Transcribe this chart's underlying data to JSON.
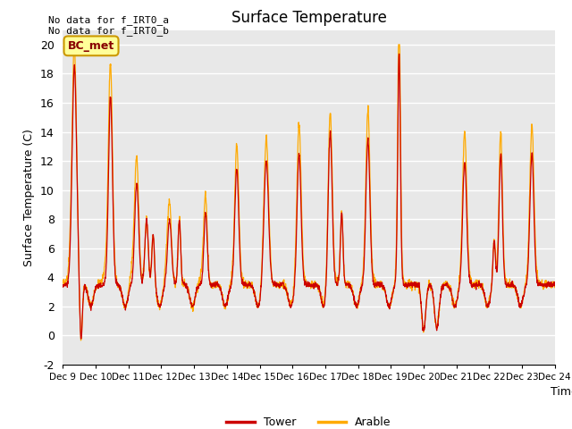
{
  "title": "Surface Temperature",
  "ylabel": "Surface Temperature (C)",
  "xlabel": "Time",
  "no_data_texts": [
    "No data for f_IRT0_a",
    "No data for f_IRT0_b"
  ],
  "bc_met_label": "BC_met",
  "legend_entries": [
    "Tower",
    "Arable"
  ],
  "legend_colors": [
    "#cc0000",
    "#ffaa00"
  ],
  "ylim": [
    -2,
    21
  ],
  "yticks": [
    -2,
    0,
    2,
    4,
    6,
    8,
    10,
    12,
    14,
    16,
    18,
    20
  ],
  "x_tick_labels": [
    "Dec 9",
    "Dec 10",
    "Dec 11",
    "Dec 12",
    "Dec 13",
    "Dec 14",
    "Dec 15",
    "Dec 16",
    "Dec 17",
    "Dec 18",
    "Dec 19",
    "Dec 20",
    "Dec 21",
    "Dec 22",
    "Dec 23",
    "Dec 24"
  ],
  "plot_bg_color": "#e8e8e8",
  "fig_bg_color": "#ffffff",
  "grid_color": "#ffffff",
  "tower_color": "#cc0000",
  "arable_color": "#ffaa00",
  "bc_met_bg": "#ffff99",
  "bc_met_border": "#cc9900"
}
